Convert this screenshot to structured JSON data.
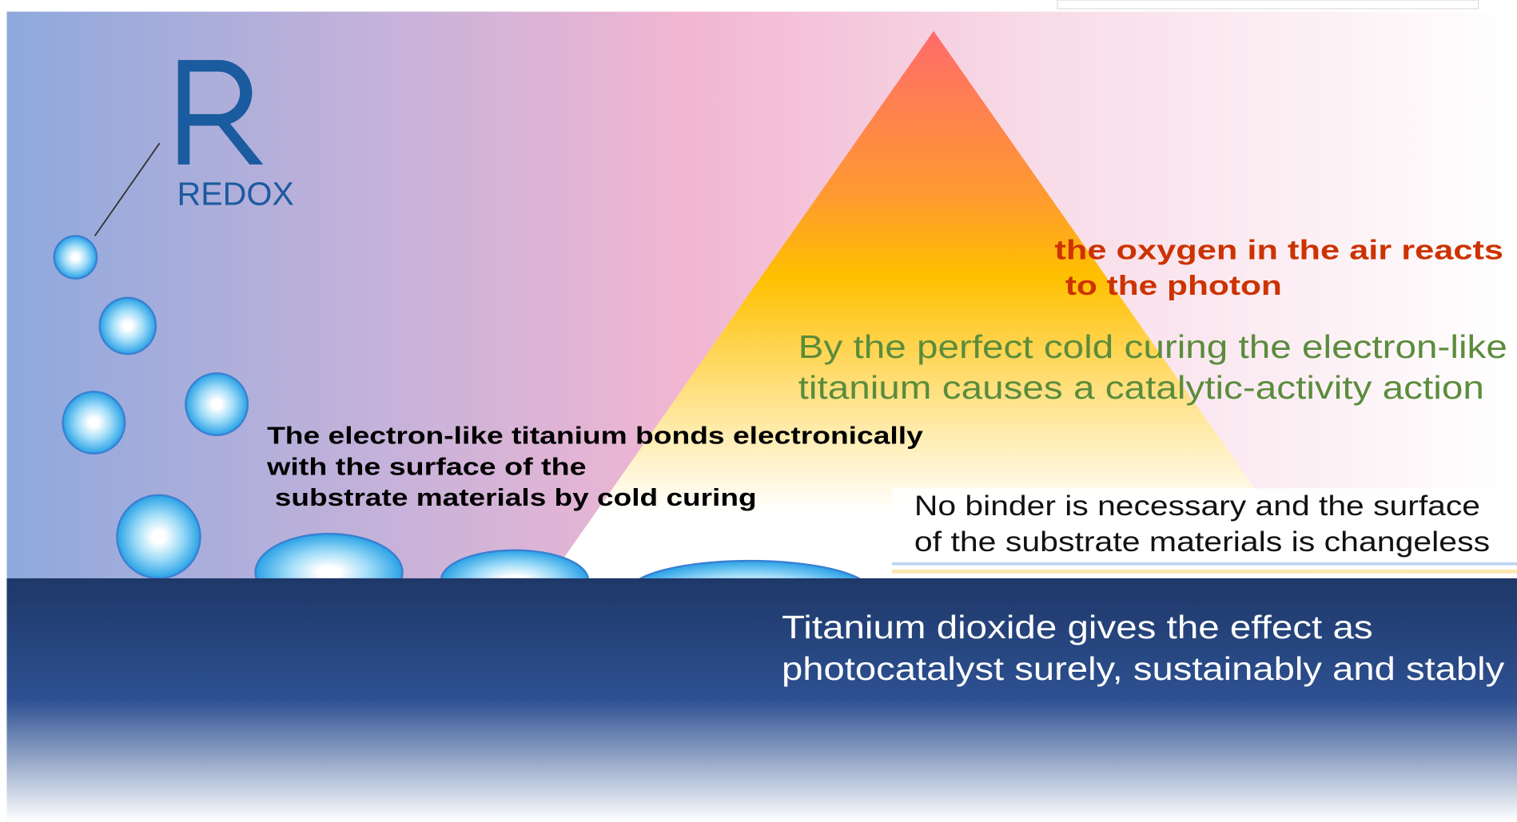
{
  "logo": {
    "text": "REDOX"
  },
  "labels": {
    "bonds": [
      "The electron-like titanium bonds electronically",
      "with the surface of the",
      "substrate materials by cold curing"
    ],
    "oxygen": [
      "the oxygen in the air reacts",
      "to the photon"
    ],
    "curing": [
      "By the perfect cold curing the electron-like",
      "titanium causes a catalytic-activity action"
    ],
    "binder": [
      "No binder is necessary and the surface",
      "of the substrate materials is changeless"
    ],
    "effect": [
      "Titanium dioxide gives the effect as",
      "photocatalyst surely, sustainably and stably"
    ]
  }
}
